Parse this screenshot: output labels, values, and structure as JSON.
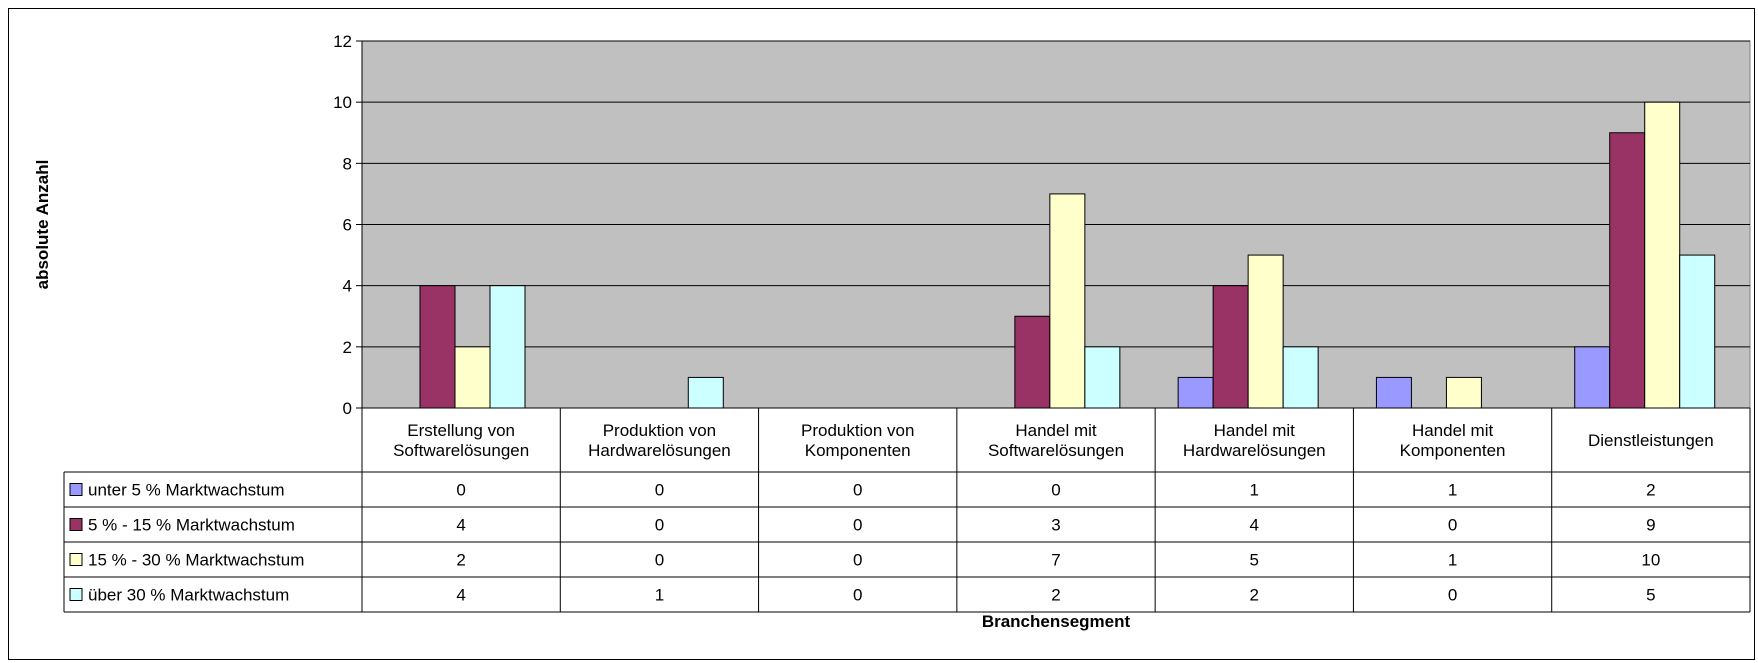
{
  "chart_data": {
    "type": "bar",
    "title": "",
    "ylabel": "absolute Anzahl",
    "xlabel": "Branchensegment",
    "ylim": [
      0,
      12
    ],
    "yticks": [
      0,
      2,
      4,
      6,
      8,
      10,
      12
    ],
    "grid": true,
    "legend": "data-table-left",
    "categories": [
      [
        "Erstellung von",
        "Softwarelösungen"
      ],
      [
        "Produktion von",
        "Hardwarelösungen"
      ],
      [
        "Produktion von",
        "Komponenten"
      ],
      [
        "Handel mit",
        "Softwarelösungen"
      ],
      [
        "Handel mit",
        "Hardwarelösungen"
      ],
      [
        "Handel mit",
        "Komponenten"
      ],
      [
        "Dienstleistungen"
      ]
    ],
    "series": [
      {
        "name": "unter 5 % Marktwachstum",
        "color": "#9999FF",
        "values": [
          0,
          0,
          0,
          0,
          1,
          1,
          2
        ]
      },
      {
        "name": "5 % - 15 % Marktwachstum",
        "color": "#993366",
        "values": [
          4,
          0,
          0,
          3,
          4,
          0,
          9
        ]
      },
      {
        "name": "15 % - 30 % Marktwachstum",
        "color": "#FFFFCC",
        "values": [
          2,
          0,
          0,
          7,
          5,
          1,
          10
        ]
      },
      {
        "name": "über 30 % Marktwachstum",
        "color": "#CCFFFF",
        "values": [
          4,
          1,
          0,
          2,
          2,
          0,
          5
        ]
      }
    ],
    "plot_background": "#C0C0C0"
  }
}
